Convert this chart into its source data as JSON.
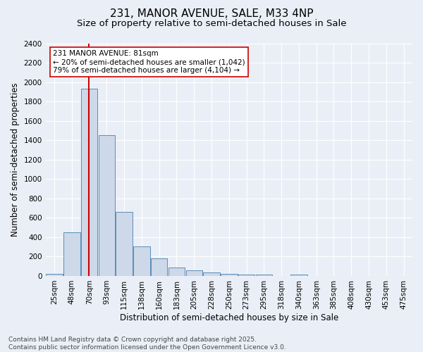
{
  "title": "231, MANOR AVENUE, SALE, M33 4NP",
  "subtitle": "Size of property relative to semi-detached houses in Sale",
  "xlabel": "Distribution of semi-detached houses by size in Sale",
  "ylabel": "Number of semi-detached properties",
  "bin_labels": [
    "25sqm",
    "48sqm",
    "70sqm",
    "93sqm",
    "115sqm",
    "138sqm",
    "160sqm",
    "183sqm",
    "205sqm",
    "228sqm",
    "250sqm",
    "273sqm",
    "295sqm",
    "318sqm",
    "340sqm",
    "363sqm",
    "385sqm",
    "408sqm",
    "430sqm",
    "453sqm",
    "475sqm"
  ],
  "bar_heights": [
    20,
    450,
    1930,
    1450,
    660,
    305,
    180,
    90,
    60,
    35,
    20,
    15,
    15,
    0,
    15,
    0,
    0,
    0,
    0,
    0,
    0
  ],
  "bar_color": "#cdd8e8",
  "bar_edge_color": "#5b8db8",
  "ylim": [
    0,
    2400
  ],
  "yticks": [
    0,
    200,
    400,
    600,
    800,
    1000,
    1200,
    1400,
    1600,
    1800,
    2000,
    2200,
    2400
  ],
  "property_size": 81,
  "red_line_color": "#cc0000",
  "annotation_text": "231 MANOR AVENUE: 81sqm\n← 20% of semi-detached houses are smaller (1,042)\n79% of semi-detached houses are larger (4,104) →",
  "annotation_box_color": "#ffffff",
  "annotation_border_color": "#cc0000",
  "footer_line1": "Contains HM Land Registry data © Crown copyright and database right 2025.",
  "footer_line2": "Contains public sector information licensed under the Open Government Licence v3.0.",
  "bg_color": "#eaeff7",
  "plot_bg_color": "#eaeff7",
  "grid_color": "#ffffff",
  "title_fontsize": 11,
  "subtitle_fontsize": 9.5,
  "label_fontsize": 8.5,
  "tick_fontsize": 7.5,
  "footer_fontsize": 6.5,
  "annotation_fontsize": 7.5,
  "bin_starts": [
    25,
    48,
    70,
    93,
    115,
    138,
    160,
    183,
    205,
    228,
    250,
    273,
    295,
    318,
    340,
    363,
    385,
    408,
    430,
    453,
    475
  ]
}
